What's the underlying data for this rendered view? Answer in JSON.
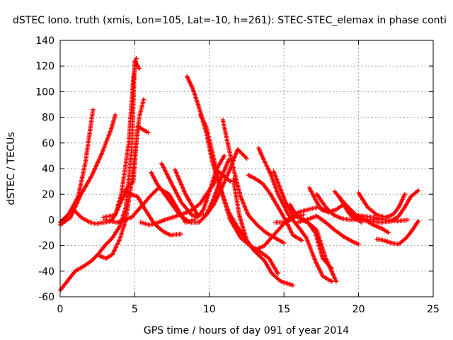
{
  "chart_data": {
    "type": "scatter",
    "title": "dSTEC Iono. truth (xmis, Lon=105, Lat=-10, h=261): STEC-STEC_elemax in phase conti",
    "xlabel": "GPS time / hours of day 091 of year 2014",
    "ylabel": "dSTEC  / TECUs",
    "xlim": [
      0,
      25
    ],
    "ylim": [
      -60,
      140
    ],
    "xticks": [
      "0",
      "5",
      "10",
      "15",
      "20",
      "25"
    ],
    "yticks": [
      "-60",
      "-40",
      "-20",
      "0",
      "20",
      "40",
      "60",
      "80",
      "100",
      "120",
      "140"
    ],
    "grid": true,
    "legend": "none",
    "marker": "+",
    "color": "#ff0000",
    "series": [
      {
        "points": [
          [
            0.0,
            -2
          ],
          [
            0.6,
            5
          ],
          [
            1.2,
            18
          ],
          [
            1.7,
            45
          ],
          [
            2.2,
            86
          ]
        ]
      },
      {
        "points": [
          [
            0.0,
            -4
          ],
          [
            0.7,
            2
          ],
          [
            1.4,
            20
          ],
          [
            2.1,
            34
          ],
          [
            2.8,
            52
          ],
          [
            3.4,
            70
          ],
          [
            3.7,
            82
          ]
        ]
      },
      {
        "points": [
          [
            0.0,
            -55
          ],
          [
            0.6,
            -46
          ],
          [
            1.0,
            -40
          ],
          [
            1.6,
            -36
          ],
          [
            2.1,
            -32
          ],
          [
            2.6,
            -26
          ],
          [
            3.0,
            -20
          ],
          [
            3.5,
            -14
          ],
          [
            4.0,
            -5
          ],
          [
            4.4,
            10
          ],
          [
            4.8,
            55
          ],
          [
            5.0,
            124
          ],
          [
            5.3,
            118
          ]
        ]
      },
      {
        "points": [
          [
            0.9,
            8
          ],
          [
            1.4,
            2
          ],
          [
            2.0,
            -2
          ],
          [
            2.4,
            -3
          ],
          [
            3.0,
            -2
          ],
          [
            3.4,
            -1
          ],
          [
            3.7,
            4
          ],
          [
            4.1,
            20
          ],
          [
            4.6,
            60
          ],
          [
            4.9,
            110
          ],
          [
            5.1,
            126
          ]
        ]
      },
      {
        "points": [
          [
            2.6,
            -28
          ],
          [
            3.1,
            -30
          ],
          [
            3.5,
            -27
          ],
          [
            4.0,
            -15
          ],
          [
            4.4,
            0
          ],
          [
            4.8,
            30
          ],
          [
            5.3,
            80
          ],
          [
            5.6,
            94
          ]
        ]
      },
      {
        "points": [
          [
            2.9,
            2
          ],
          [
            3.7,
            4
          ],
          [
            4.3,
            20
          ],
          [
            4.5,
            25
          ],
          [
            4.9,
            30
          ],
          [
            5.2,
            73
          ],
          [
            5.9,
            68
          ]
        ]
      },
      {
        "points": [
          [
            3.0,
            0
          ],
          [
            3.8,
            -2
          ],
          [
            4.8,
            2
          ],
          [
            6.0,
            18
          ],
          [
            6.6,
            25
          ],
          [
            7.3,
            20
          ],
          [
            7.8,
            10
          ],
          [
            8.4,
            -2
          ],
          [
            9.0,
            0
          ]
        ]
      },
      {
        "points": [
          [
            5.4,
            -2
          ],
          [
            6.0,
            -4
          ],
          [
            6.6,
            -2
          ],
          [
            7.0,
            0
          ],
          [
            7.8,
            3
          ],
          [
            8.3,
            5
          ],
          [
            8.9,
            8
          ],
          [
            9.4,
            13
          ],
          [
            9.8,
            20
          ],
          [
            10.3,
            28
          ],
          [
            10.6,
            38
          ],
          [
            11.4,
            30
          ]
        ]
      },
      {
        "points": [
          [
            4.3,
            22
          ],
          [
            5.2,
            18
          ],
          [
            5.7,
            8
          ],
          [
            6.3,
            -3
          ],
          [
            6.9,
            -9
          ],
          [
            7.4,
            -12
          ],
          [
            8.1,
            -11
          ]
        ]
      },
      {
        "points": [
          [
            6.1,
            37
          ],
          [
            6.5,
            28
          ],
          [
            7.0,
            20
          ],
          [
            7.5,
            12
          ],
          [
            8.0,
            4
          ],
          [
            8.7,
            -2
          ],
          [
            9.3,
            -2
          ],
          [
            9.8,
            4
          ],
          [
            10.3,
            17
          ],
          [
            10.7,
            30
          ],
          [
            11.3,
            47
          ]
        ]
      },
      {
        "points": [
          [
            6.8,
            44
          ],
          [
            7.4,
            30
          ],
          [
            8.1,
            14
          ],
          [
            8.8,
            4
          ],
          [
            9.2,
            2
          ],
          [
            9.6,
            8
          ],
          [
            10.0,
            22
          ],
          [
            10.5,
            40
          ],
          [
            11.0,
            50
          ]
        ]
      },
      {
        "points": [
          [
            7.7,
            39
          ],
          [
            8.4,
            20
          ],
          [
            9.2,
            4
          ],
          [
            9.8,
            4
          ],
          [
            10.3,
            12
          ],
          [
            10.8,
            24
          ],
          [
            11.4,
            40
          ],
          [
            11.9,
            55
          ],
          [
            12.5,
            48
          ]
        ]
      },
      {
        "points": [
          [
            8.5,
            112
          ],
          [
            8.9,
            102
          ],
          [
            9.3,
            88
          ],
          [
            9.8,
            68
          ],
          [
            10.2,
            45
          ],
          [
            10.7,
            26
          ],
          [
            11.3,
            6
          ],
          [
            11.8,
            -4
          ],
          [
            12.4,
            -14
          ],
          [
            13.0,
            -24
          ],
          [
            13.7,
            -32
          ],
          [
            14.2,
            -42
          ],
          [
            14.8,
            -48
          ],
          [
            15.6,
            -51
          ]
        ]
      },
      {
        "points": [
          [
            9.4,
            82
          ],
          [
            9.8,
            72
          ],
          [
            10.3,
            48
          ],
          [
            10.8,
            22
          ],
          [
            11.4,
            0
          ],
          [
            12.1,
            -14
          ],
          [
            12.7,
            -20
          ],
          [
            13.3,
            -24
          ],
          [
            14.0,
            -30
          ],
          [
            14.6,
            -42
          ]
        ]
      },
      {
        "points": [
          [
            10.9,
            78
          ],
          [
            11.3,
            56
          ],
          [
            11.7,
            36
          ],
          [
            12.1,
            18
          ],
          [
            12.6,
            4
          ],
          [
            13.2,
            -4
          ],
          [
            13.8,
            -10
          ],
          [
            14.4,
            -14
          ],
          [
            15.0,
            -18
          ]
        ]
      },
      {
        "points": [
          [
            11.6,
            32
          ],
          [
            12.0,
            4
          ],
          [
            12.5,
            -16
          ],
          [
            13.0,
            -24
          ],
          [
            13.7,
            -20
          ],
          [
            14.3,
            -12
          ],
          [
            15.0,
            -3
          ],
          [
            15.7,
            2
          ],
          [
            16.3,
            4
          ]
        ]
      },
      {
        "points": [
          [
            12.6,
            35
          ],
          [
            13.1,
            32
          ],
          [
            13.6,
            28
          ],
          [
            14.1,
            20
          ],
          [
            14.6,
            10
          ],
          [
            15.1,
            0
          ],
          [
            15.6,
            -12
          ],
          [
            16.2,
            -16
          ]
        ]
      },
      {
        "points": [
          [
            13.3,
            56
          ],
          [
            13.6,
            48
          ],
          [
            14.1,
            36
          ],
          [
            14.6,
            20
          ],
          [
            15.3,
            4
          ],
          [
            16.0,
            -6
          ],
          [
            16.5,
            -14
          ],
          [
            17.1,
            -32
          ],
          [
            17.6,
            -44
          ],
          [
            18.2,
            -48
          ]
        ]
      },
      {
        "points": [
          [
            14.3,
            38
          ],
          [
            14.7,
            26
          ],
          [
            15.1,
            14
          ],
          [
            15.6,
            4
          ],
          [
            16.1,
            2
          ],
          [
            16.6,
            -2
          ],
          [
            17.2,
            -8
          ],
          [
            17.8,
            -30
          ],
          [
            18.5,
            -48
          ]
        ]
      },
      {
        "points": [
          [
            15.4,
            12
          ],
          [
            15.8,
            4
          ],
          [
            16.2,
            0
          ],
          [
            16.6,
            -2
          ],
          [
            17.1,
            -10
          ],
          [
            17.6,
            -30
          ],
          [
            18.2,
            -38
          ]
        ]
      },
      {
        "points": [
          [
            16.7,
            25
          ],
          [
            17.1,
            16
          ],
          [
            17.5,
            8
          ],
          [
            18.0,
            6
          ],
          [
            18.5,
            8
          ],
          [
            19.0,
            12
          ],
          [
            19.5,
            3
          ],
          [
            20.2,
            -2
          ]
        ]
      },
      {
        "points": [
          [
            17.2,
            20
          ],
          [
            17.8,
            10
          ],
          [
            18.3,
            4
          ],
          [
            18.9,
            1
          ],
          [
            19.5,
            0
          ],
          [
            20.1,
            1
          ],
          [
            20.7,
            0
          ],
          [
            21.5,
            1
          ]
        ]
      },
      {
        "points": [
          [
            18.4,
            22
          ],
          [
            18.9,
            15
          ],
          [
            19.3,
            10
          ],
          [
            19.8,
            4
          ],
          [
            20.4,
            0
          ],
          [
            21.0,
            -4
          ],
          [
            21.6,
            -7
          ],
          [
            22.0,
            -10
          ]
        ]
      },
      {
        "points": [
          [
            18.7,
            18
          ],
          [
            19.3,
            6
          ],
          [
            20.0,
            1
          ],
          [
            20.7,
            -1
          ],
          [
            21.5,
            -2
          ],
          [
            22.2,
            -1
          ],
          [
            22.7,
            3
          ],
          [
            23.1,
            10
          ],
          [
            23.5,
            18
          ],
          [
            24.0,
            23
          ]
        ]
      },
      {
        "points": [
          [
            15.9,
            -2
          ],
          [
            16.5,
            0
          ],
          [
            17.2,
            3
          ],
          [
            17.8,
            -2
          ],
          [
            18.4,
            -8
          ],
          [
            19.0,
            -13
          ],
          [
            19.6,
            -17
          ],
          [
            20.0,
            -19
          ]
        ]
      },
      {
        "points": [
          [
            20.0,
            21
          ],
          [
            20.6,
            10
          ],
          [
            21.2,
            4
          ],
          [
            21.8,
            2
          ],
          [
            22.3,
            4
          ],
          [
            22.7,
            10
          ],
          [
            23.1,
            20
          ]
        ]
      },
      {
        "points": [
          [
            21.2,
            -15
          ],
          [
            21.7,
            -16
          ],
          [
            22.2,
            -18
          ],
          [
            22.7,
            -19
          ],
          [
            23.2,
            -14
          ],
          [
            23.6,
            -8
          ],
          [
            24.0,
            -1
          ]
        ]
      },
      {
        "points": [
          [
            14.4,
            -2
          ],
          [
            15.0,
            -2
          ],
          [
            15.6,
            3
          ],
          [
            16.0,
            6
          ],
          [
            16.6,
            8
          ],
          [
            17.3,
            10
          ],
          [
            18.0,
            6
          ]
        ]
      },
      {
        "points": [
          [
            19.6,
            4
          ],
          [
            20.3,
            3
          ],
          [
            21.0,
            2
          ],
          [
            21.8,
            0
          ],
          [
            22.6,
            -1
          ],
          [
            23.3,
            0
          ]
        ]
      }
    ]
  }
}
